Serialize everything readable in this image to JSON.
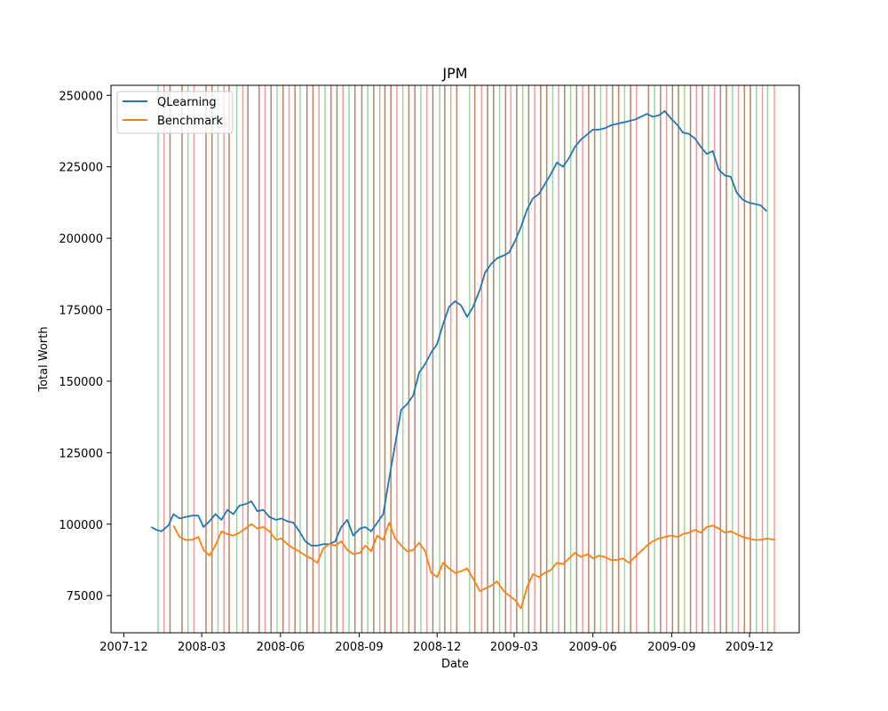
{
  "chart_data": {
    "type": "line",
    "title": "JPM",
    "xlabel": "Date",
    "ylabel": "Total Worth",
    "x_type": "date",
    "xlim": [
      "2007-11-16",
      "2010-01-28"
    ],
    "ylim": [
      62000,
      253500
    ],
    "x_ticks": [
      "2007-12",
      "2008-03",
      "2008-06",
      "2008-09",
      "2008-12",
      "2009-03",
      "2009-06",
      "2009-09",
      "2009-12"
    ],
    "y_ticks": [
      75000,
      100000,
      125000,
      150000,
      175000,
      200000,
      225000,
      250000
    ],
    "y_tick_labels": [
      "75000",
      "100000",
      "125000",
      "150000",
      "175000",
      "200000",
      "225000",
      "250000"
    ],
    "grid": false,
    "legend_position": "upper-left",
    "colors": {
      "qlearning": "#1f77b4",
      "benchmark": "#ff7f0e",
      "buy_marker": "#2ca02c",
      "sell_marker": "#d62728"
    },
    "series": [
      {
        "name": "QLearning",
        "color": "#1f77b4",
        "points": [
          [
            "2008-01-02",
            99000
          ],
          [
            "2008-01-08",
            98000
          ],
          [
            "2008-01-14",
            97500
          ],
          [
            "2008-01-22",
            99500
          ],
          [
            "2008-01-28",
            103500
          ],
          [
            "2008-02-04",
            102000
          ],
          [
            "2008-02-11",
            102500
          ],
          [
            "2008-02-19",
            103000
          ],
          [
            "2008-02-26",
            103000
          ],
          [
            "2008-03-03",
            99000
          ],
          [
            "2008-03-10",
            101000
          ],
          [
            "2008-03-17",
            103500
          ],
          [
            "2008-03-24",
            101500
          ],
          [
            "2008-03-31",
            105000
          ],
          [
            "2008-04-07",
            103500
          ],
          [
            "2008-04-14",
            106500
          ],
          [
            "2008-04-21",
            107000
          ],
          [
            "2008-04-28",
            108000
          ],
          [
            "2008-05-05",
            104500
          ],
          [
            "2008-05-12",
            105000
          ],
          [
            "2008-05-19",
            102500
          ],
          [
            "2008-05-27",
            101500
          ],
          [
            "2008-06-02",
            102000
          ],
          [
            "2008-06-09",
            101000
          ],
          [
            "2008-06-16",
            100500
          ],
          [
            "2008-06-23",
            97500
          ],
          [
            "2008-06-30",
            94000
          ],
          [
            "2008-07-07",
            92500
          ],
          [
            "2008-07-14",
            92500
          ],
          [
            "2008-07-21",
            93000
          ],
          [
            "2008-07-28",
            93000
          ],
          [
            "2008-08-04",
            94000
          ],
          [
            "2008-08-11",
            99000
          ],
          [
            "2008-08-18",
            101500
          ],
          [
            "2008-08-25",
            96000
          ],
          [
            "2008-09-02",
            98500
          ],
          [
            "2008-09-08",
            99000
          ],
          [
            "2008-09-15",
            97500
          ],
          [
            "2008-09-22",
            100500
          ],
          [
            "2008-09-29",
            103500
          ],
          [
            "2008-10-06",
            116000
          ],
          [
            "2008-10-13",
            128000
          ],
          [
            "2008-10-20",
            140000
          ],
          [
            "2008-10-27",
            142000
          ],
          [
            "2008-11-03",
            145000
          ],
          [
            "2008-11-10",
            153000
          ],
          [
            "2008-11-17",
            156000
          ],
          [
            "2008-11-24",
            160000
          ],
          [
            "2008-12-01",
            163000
          ],
          [
            "2008-12-08",
            170000
          ],
          [
            "2008-12-15",
            176000
          ],
          [
            "2008-12-22",
            178000
          ],
          [
            "2008-12-29",
            176500
          ],
          [
            "2009-01-05",
            172500
          ],
          [
            "2009-01-12",
            176000
          ],
          [
            "2009-01-20",
            182000
          ],
          [
            "2009-01-26",
            188000
          ],
          [
            "2009-02-02",
            191000
          ],
          [
            "2009-02-09",
            193000
          ],
          [
            "2009-02-17",
            194000
          ],
          [
            "2009-02-23",
            195000
          ],
          [
            "2009-03-02",
            199000
          ],
          [
            "2009-03-09",
            204000
          ],
          [
            "2009-03-16",
            210000
          ],
          [
            "2009-03-23",
            214000
          ],
          [
            "2009-03-30",
            215500
          ],
          [
            "2009-04-06",
            219000
          ],
          [
            "2009-04-13",
            222500
          ],
          [
            "2009-04-20",
            226500
          ],
          [
            "2009-04-27",
            225000
          ],
          [
            "2009-05-04",
            228000
          ],
          [
            "2009-05-11",
            232000
          ],
          [
            "2009-05-18",
            234500
          ],
          [
            "2009-05-26",
            236500
          ],
          [
            "2009-06-01",
            238000
          ],
          [
            "2009-06-08",
            238000
          ],
          [
            "2009-06-15",
            238500
          ],
          [
            "2009-06-22",
            239500
          ],
          [
            "2009-06-29",
            240000
          ],
          [
            "2009-07-06",
            240500
          ],
          [
            "2009-07-13",
            241000
          ],
          [
            "2009-07-20",
            241500
          ],
          [
            "2009-07-27",
            242500
          ],
          [
            "2009-08-03",
            243500
          ],
          [
            "2009-08-10",
            242500
          ],
          [
            "2009-08-17",
            243000
          ],
          [
            "2009-08-24",
            244500
          ],
          [
            "2009-08-31",
            242000
          ],
          [
            "2009-09-08",
            239500
          ],
          [
            "2009-09-14",
            237000
          ],
          [
            "2009-09-21",
            236500
          ],
          [
            "2009-09-28",
            235000
          ],
          [
            "2009-10-05",
            232000
          ],
          [
            "2009-10-12",
            229500
          ],
          [
            "2009-10-19",
            230500
          ],
          [
            "2009-10-26",
            224000
          ],
          [
            "2009-11-02",
            222000
          ],
          [
            "2009-11-09",
            221500
          ],
          [
            "2009-11-16",
            216000
          ],
          [
            "2009-11-23",
            213500
          ],
          [
            "2009-11-30",
            212500
          ],
          [
            "2009-12-07",
            212000
          ],
          [
            "2009-12-14",
            211500
          ],
          [
            "2009-12-21",
            209500
          ]
        ]
      },
      {
        "name": "Benchmark",
        "color": "#ff7f0e",
        "points": [
          [
            "2008-01-28",
            99500
          ],
          [
            "2008-02-04",
            95500
          ],
          [
            "2008-02-11",
            94500
          ],
          [
            "2008-02-19",
            94500
          ],
          [
            "2008-02-26",
            95500
          ],
          [
            "2008-03-03",
            91000
          ],
          [
            "2008-03-10",
            89000
          ],
          [
            "2008-03-17",
            92500
          ],
          [
            "2008-03-24",
            97500
          ],
          [
            "2008-03-31",
            96500
          ],
          [
            "2008-04-07",
            96000
          ],
          [
            "2008-04-14",
            97000
          ],
          [
            "2008-04-21",
            98500
          ],
          [
            "2008-04-28",
            100000
          ],
          [
            "2008-05-05",
            98500
          ],
          [
            "2008-05-12",
            99000
          ],
          [
            "2008-05-19",
            97500
          ],
          [
            "2008-05-27",
            94500
          ],
          [
            "2008-06-02",
            95000
          ],
          [
            "2008-06-09",
            93000
          ],
          [
            "2008-06-16",
            91500
          ],
          [
            "2008-06-23",
            90500
          ],
          [
            "2008-06-30",
            89000
          ],
          [
            "2008-07-07",
            88000
          ],
          [
            "2008-07-14",
            86500
          ],
          [
            "2008-07-21",
            91500
          ],
          [
            "2008-07-28",
            93000
          ],
          [
            "2008-08-04",
            92500
          ],
          [
            "2008-08-11",
            94000
          ],
          [
            "2008-08-18",
            91000
          ],
          [
            "2008-08-25",
            89500
          ],
          [
            "2008-09-02",
            90000
          ],
          [
            "2008-09-08",
            92500
          ],
          [
            "2008-09-15",
            90500
          ],
          [
            "2008-09-22",
            96000
          ],
          [
            "2008-09-29",
            94500
          ],
          [
            "2008-10-06",
            100500
          ],
          [
            "2008-10-13",
            95000
          ],
          [
            "2008-10-20",
            92500
          ],
          [
            "2008-10-27",
            90500
          ],
          [
            "2008-11-03",
            91000
          ],
          [
            "2008-11-10",
            93500
          ],
          [
            "2008-11-17",
            90500
          ],
          [
            "2008-11-24",
            83000
          ],
          [
            "2008-12-01",
            81500
          ],
          [
            "2008-12-08",
            86500
          ],
          [
            "2008-12-15",
            84500
          ],
          [
            "2008-12-22",
            83000
          ],
          [
            "2008-12-29",
            83500
          ],
          [
            "2009-01-05",
            84500
          ],
          [
            "2009-01-12",
            81000
          ],
          [
            "2009-01-20",
            76500
          ],
          [
            "2009-01-26",
            77500
          ],
          [
            "2009-02-02",
            78500
          ],
          [
            "2009-02-09",
            80000
          ],
          [
            "2009-02-17",
            76500
          ],
          [
            "2009-02-23",
            75000
          ],
          [
            "2009-03-02",
            73500
          ],
          [
            "2009-03-09",
            70500
          ],
          [
            "2009-03-16",
            78000
          ],
          [
            "2009-03-23",
            82500
          ],
          [
            "2009-03-30",
            81500
          ],
          [
            "2009-04-06",
            83000
          ],
          [
            "2009-04-13",
            84000
          ],
          [
            "2009-04-20",
            86500
          ],
          [
            "2009-04-27",
            86000
          ],
          [
            "2009-05-04",
            88000
          ],
          [
            "2009-05-11",
            90000
          ],
          [
            "2009-05-18",
            88500
          ],
          [
            "2009-05-26",
            89500
          ],
          [
            "2009-06-01",
            88000
          ],
          [
            "2009-06-08",
            89000
          ],
          [
            "2009-06-15",
            88500
          ],
          [
            "2009-06-22",
            87500
          ],
          [
            "2009-06-29",
            87500
          ],
          [
            "2009-07-06",
            88000
          ],
          [
            "2009-07-13",
            86500
          ],
          [
            "2009-07-20",
            88500
          ],
          [
            "2009-07-27",
            90500
          ],
          [
            "2009-08-03",
            92500
          ],
          [
            "2009-08-10",
            94000
          ],
          [
            "2009-08-17",
            95000
          ],
          [
            "2009-08-24",
            95500
          ],
          [
            "2009-08-31",
            96000
          ],
          [
            "2009-09-08",
            95500
          ],
          [
            "2009-09-14",
            96500
          ],
          [
            "2009-09-21",
            97000
          ],
          [
            "2009-09-28",
            98000
          ],
          [
            "2009-10-05",
            97000
          ],
          [
            "2009-10-12",
            99000
          ],
          [
            "2009-10-19",
            99500
          ],
          [
            "2009-10-26",
            98500
          ],
          [
            "2009-11-02",
            97000
          ],
          [
            "2009-11-09",
            97500
          ],
          [
            "2009-11-16",
            96500
          ],
          [
            "2009-11-23",
            95500
          ],
          [
            "2009-11-30",
            95000
          ],
          [
            "2009-12-07",
            94500
          ],
          [
            "2009-12-14",
            94500
          ],
          [
            "2009-12-21",
            95000
          ],
          [
            "2009-12-31",
            94500
          ]
        ]
      }
    ],
    "trade_markers": {
      "buy": [
        "2008-01-10",
        "2008-02-14",
        "2008-03-20",
        "2008-04-11",
        "2008-05-28",
        "2008-06-24",
        "2008-07-23",
        "2008-08-20",
        "2008-09-11",
        "2008-10-22",
        "2008-11-12",
        "2008-12-04",
        "2009-01-08",
        "2009-02-12",
        "2009-03-11",
        "2009-04-15",
        "2009-05-06",
        "2009-06-10",
        "2009-07-08",
        "2009-08-12",
        "2009-09-16",
        "2009-10-14",
        "2009-11-11",
        "2009-12-09",
        "2009-12-22"
      ],
      "sell": [
        "2008-01-17",
        "2008-02-21",
        "2008-03-27",
        "2008-04-18",
        "2008-05-14",
        "2008-06-11",
        "2008-07-16",
        "2008-08-13",
        "2008-09-25",
        "2008-10-15",
        "2008-11-19",
        "2008-12-17",
        "2009-01-22",
        "2009-02-25",
        "2009-03-25",
        "2009-04-22",
        "2009-05-20",
        "2009-06-17",
        "2009-07-22",
        "2009-08-26",
        "2009-09-30",
        "2009-10-21",
        "2009-11-18",
        "2009-12-16",
        "2009-12-30"
      ],
      "both": [
        "2008-01-24",
        "2008-02-07",
        "2008-03-06",
        "2008-03-13",
        "2008-04-02",
        "2008-04-24",
        "2008-05-07",
        "2008-05-21",
        "2008-06-04",
        "2008-06-18",
        "2008-07-02",
        "2008-07-09",
        "2008-07-30",
        "2008-08-06",
        "2008-08-27",
        "2008-09-04",
        "2008-09-18",
        "2008-10-01",
        "2008-10-08",
        "2008-10-29",
        "2008-11-05",
        "2008-11-26",
        "2008-12-10",
        "2008-12-24",
        "2009-01-14",
        "2009-01-29",
        "2009-02-05",
        "2009-02-19",
        "2009-03-04",
        "2009-03-18",
        "2009-04-01",
        "2009-04-08",
        "2009-04-29",
        "2009-05-13",
        "2009-05-27",
        "2009-06-03",
        "2009-06-24",
        "2009-07-01",
        "2009-07-15",
        "2009-08-05",
        "2009-08-19",
        "2009-09-02",
        "2009-09-09",
        "2009-09-23",
        "2009-10-07",
        "2009-10-28",
        "2009-11-04",
        "2009-11-25",
        "2009-12-02"
      ]
    }
  }
}
